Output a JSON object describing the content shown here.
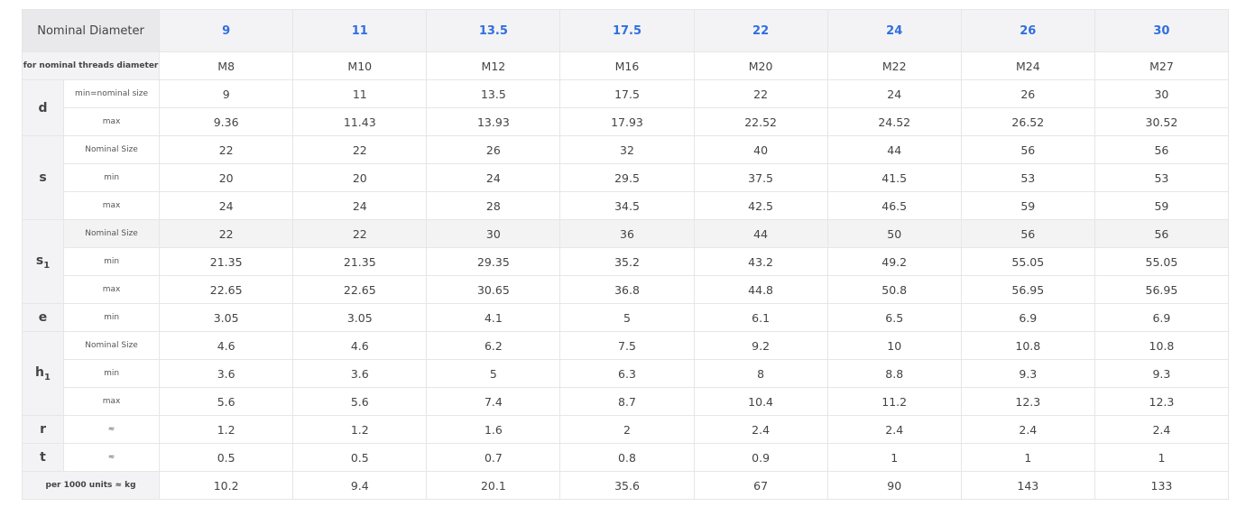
{
  "table": {
    "corner_label": "Nominal Diameter",
    "diameters": [
      "9",
      "11",
      "13.5",
      "17.5",
      "22",
      "24",
      "26",
      "30"
    ],
    "threads": {
      "label": "for nominal threads diameter",
      "values": [
        "M8",
        "M10",
        "M12",
        "M16",
        "M20",
        "M22",
        "M24",
        "M27"
      ]
    },
    "groups": [
      {
        "name": "d",
        "sub": "",
        "rows": [
          {
            "label": "min=nominal size",
            "shaded": false,
            "values": [
              "9",
              "11",
              "13.5",
              "17.5",
              "22",
              "24",
              "26",
              "30"
            ]
          },
          {
            "label": "max",
            "shaded": false,
            "values": [
              "9.36",
              "11.43",
              "13.93",
              "17.93",
              "22.52",
              "24.52",
              "26.52",
              "30.52"
            ]
          }
        ]
      },
      {
        "name": "s",
        "sub": "",
        "rows": [
          {
            "label": "Nominal Size",
            "shaded": false,
            "values": [
              "22",
              "22",
              "26",
              "32",
              "40",
              "44",
              "56",
              "56"
            ]
          },
          {
            "label": "min",
            "shaded": false,
            "values": [
              "20",
              "20",
              "24",
              "29.5",
              "37.5",
              "41.5",
              "53",
              "53"
            ]
          },
          {
            "label": "max",
            "shaded": false,
            "values": [
              "24",
              "24",
              "28",
              "34.5",
              "42.5",
              "46.5",
              "59",
              "59"
            ]
          }
        ]
      },
      {
        "name": "s",
        "sub": "1",
        "rows": [
          {
            "label": "Nominal Size",
            "shaded": true,
            "values": [
              "22",
              "22",
              "30",
              "36",
              "44",
              "50",
              "56",
              "56"
            ]
          },
          {
            "label": "min",
            "shaded": false,
            "values": [
              "21.35",
              "21.35",
              "29.35",
              "35.2",
              "43.2",
              "49.2",
              "55.05",
              "55.05"
            ]
          },
          {
            "label": "max",
            "shaded": false,
            "values": [
              "22.65",
              "22.65",
              "30.65",
              "36.8",
              "44.8",
              "50.8",
              "56.95",
              "56.95"
            ]
          }
        ]
      },
      {
        "name": "e",
        "sub": "",
        "rows": [
          {
            "label": "min",
            "shaded": false,
            "values": [
              "3.05",
              "3.05",
              "4.1",
              "5",
              "6.1",
              "6.5",
              "6.9",
              "6.9"
            ]
          }
        ]
      },
      {
        "name": "h",
        "sub": "1",
        "rows": [
          {
            "label": "Nominal Size",
            "shaded": false,
            "values": [
              "4.6",
              "4.6",
              "6.2",
              "7.5",
              "9.2",
              "10",
              "10.8",
              "10.8"
            ]
          },
          {
            "label": "min",
            "shaded": false,
            "values": [
              "3.6",
              "3.6",
              "5",
              "6.3",
              "8",
              "8.8",
              "9.3",
              "9.3"
            ]
          },
          {
            "label": "max",
            "shaded": false,
            "values": [
              "5.6",
              "5.6",
              "7.4",
              "8.7",
              "10.4",
              "11.2",
              "12.3",
              "12.3"
            ]
          }
        ]
      },
      {
        "name": "r",
        "sub": "",
        "rows": [
          {
            "label": "≈",
            "shaded": false,
            "values": [
              "1.2",
              "1.2",
              "1.6",
              "2",
              "2.4",
              "2.4",
              "2.4",
              "2.4"
            ]
          }
        ]
      },
      {
        "name": "t",
        "sub": "",
        "rows": [
          {
            "label": "≈",
            "shaded": false,
            "values": [
              "0.5",
              "0.5",
              "0.7",
              "0.8",
              "0.9",
              "1",
              "1",
              "1"
            ]
          }
        ]
      }
    ],
    "weight": {
      "label": "per 1000 units ≈ kg",
      "values": [
        "10.2",
        "9.4",
        "20.1",
        "35.6",
        "67",
        "90",
        "143",
        "133"
      ]
    }
  }
}
